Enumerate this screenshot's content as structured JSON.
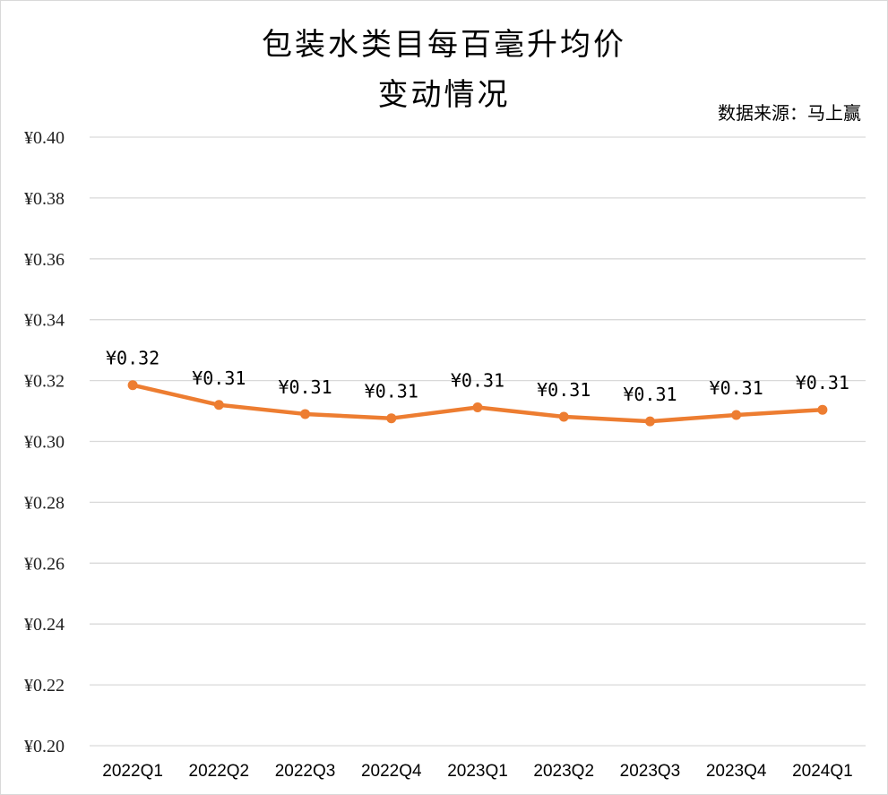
{
  "chart_data": {
    "type": "line",
    "title_line1": "包装水类目每百毫升均价",
    "title_line2": "变动情况",
    "source": "数据来源：马上赢",
    "categories": [
      "2022Q1",
      "2022Q2",
      "2022Q3",
      "2022Q4",
      "2023Q1",
      "2023Q2",
      "2023Q3",
      "2023Q4",
      "2024Q1"
    ],
    "values": [
      0.3185,
      0.312,
      0.309,
      0.3076,
      0.3112,
      0.3081,
      0.3066,
      0.3087,
      0.3104
    ],
    "data_labels": [
      "¥0.32",
      "¥0.31",
      "¥0.31",
      "¥0.31",
      "¥0.31",
      "¥0.31",
      "¥0.31",
      "¥0.31",
      "¥0.31"
    ],
    "y_tick_values": [
      0.2,
      0.22,
      0.24,
      0.26,
      0.28,
      0.3,
      0.32,
      0.34,
      0.36,
      0.38,
      0.4
    ],
    "y_tick_labels": [
      "¥0.20",
      "¥0.22",
      "¥0.24",
      "¥0.26",
      "¥0.28",
      "¥0.30",
      "¥0.32",
      "¥0.34",
      "¥0.36",
      "¥0.38",
      "¥0.40"
    ],
    "ylim": [
      0.2,
      0.4
    ],
    "grid": true,
    "legend": "none",
    "line_color": "#ED7D31",
    "grid_color": "#d9d9d9"
  }
}
